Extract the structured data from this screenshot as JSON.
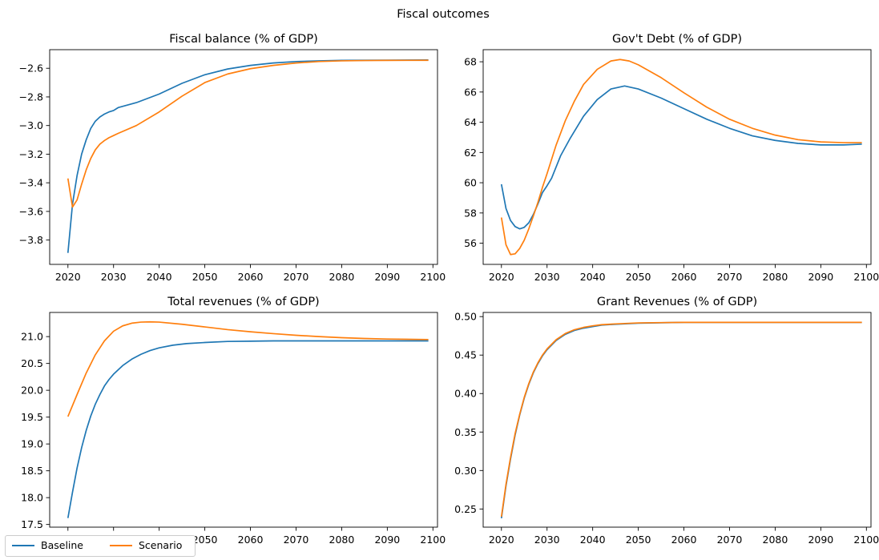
{
  "figure_title": "Fiscal outcomes",
  "colors": {
    "baseline": "#1f77b4",
    "scenario": "#ff7f0e"
  },
  "legend": {
    "location": "lower-left",
    "items": [
      "Baseline",
      "Scenario"
    ]
  },
  "chart_data": [
    {
      "type": "line",
      "title": "Fiscal balance (% of GDP)",
      "xlabel": "",
      "ylabel": "",
      "xlim": [
        2016,
        2101
      ],
      "ylim": [
        -3.97,
        -2.47
      ],
      "xticks": [
        2020,
        2030,
        2040,
        2050,
        2060,
        2070,
        2080,
        2090,
        2100
      ],
      "yticks": [
        -3.8,
        -3.6,
        -3.4,
        -3.2,
        -3.0,
        -2.8,
        -2.6
      ],
      "tick_decimals": 1,
      "series": [
        {
          "name": "Baseline",
          "x": [
            2020,
            2021,
            2022,
            2023,
            2024,
            2025,
            2026,
            2027,
            2028,
            2029,
            2030,
            2031,
            2035,
            2040,
            2045,
            2050,
            2055,
            2060,
            2065,
            2070,
            2075,
            2080,
            2085,
            2090,
            2099
          ],
          "y": [
            -3.89,
            -3.55,
            -3.35,
            -3.2,
            -3.1,
            -3.02,
            -2.97,
            -2.94,
            -2.92,
            -2.905,
            -2.895,
            -2.875,
            -2.84,
            -2.78,
            -2.705,
            -2.645,
            -2.605,
            -2.58,
            -2.563,
            -2.553,
            -2.548,
            -2.545,
            -2.544,
            -2.543,
            -2.542
          ]
        },
        {
          "name": "Scenario",
          "x": [
            2020,
            2021,
            2022,
            2023,
            2024,
            2025,
            2026,
            2027,
            2028,
            2029,
            2030,
            2031,
            2035,
            2040,
            2045,
            2050,
            2055,
            2060,
            2065,
            2070,
            2075,
            2080,
            2085,
            2090,
            2099
          ],
          "y": [
            -3.37,
            -3.57,
            -3.52,
            -3.41,
            -3.31,
            -3.23,
            -3.17,
            -3.13,
            -3.105,
            -3.085,
            -3.07,
            -3.055,
            -3.0,
            -2.905,
            -2.795,
            -2.7,
            -2.64,
            -2.603,
            -2.58,
            -2.563,
            -2.553,
            -2.548,
            -2.546,
            -2.545,
            -2.544
          ]
        }
      ]
    },
    {
      "type": "line",
      "title": "Gov't Debt (% of GDP)",
      "xlabel": "",
      "ylabel": "",
      "xlim": [
        2016,
        2101
      ],
      "ylim": [
        54.6,
        68.8
      ],
      "xticks": [
        2020,
        2030,
        2040,
        2050,
        2060,
        2070,
        2080,
        2090,
        2100
      ],
      "yticks": [
        56,
        58,
        60,
        62,
        64,
        66,
        68
      ],
      "tick_decimals": 0,
      "series": [
        {
          "name": "Baseline",
          "x": [
            2020,
            2021,
            2022,
            2023,
            2024,
            2025,
            2026,
            2027,
            2028,
            2029,
            2030,
            2031,
            2033,
            2035,
            2038,
            2041,
            2044,
            2047,
            2050,
            2055,
            2060,
            2065,
            2070,
            2075,
            2080,
            2085,
            2090,
            2095,
            2099
          ],
          "y": [
            59.9,
            58.3,
            57.5,
            57.1,
            56.95,
            57.05,
            57.35,
            57.9,
            58.6,
            59.35,
            59.8,
            60.3,
            61.8,
            62.9,
            64.4,
            65.5,
            66.2,
            66.4,
            66.2,
            65.6,
            64.9,
            64.2,
            63.6,
            63.1,
            62.8,
            62.6,
            62.5,
            62.5,
            62.55
          ]
        },
        {
          "name": "Scenario",
          "x": [
            2020,
            2021,
            2022,
            2023,
            2024,
            2025,
            2026,
            2027,
            2028,
            2029,
            2030,
            2032,
            2034,
            2036,
            2038,
            2041,
            2044,
            2046,
            2048,
            2050,
            2055,
            2060,
            2065,
            2070,
            2075,
            2080,
            2085,
            2090,
            2095,
            2099
          ],
          "y": [
            57.7,
            55.9,
            55.25,
            55.3,
            55.65,
            56.2,
            56.95,
            57.8,
            58.7,
            59.7,
            60.6,
            62.5,
            64.1,
            65.4,
            66.5,
            67.5,
            68.05,
            68.15,
            68.05,
            67.8,
            66.95,
            65.95,
            65.0,
            64.2,
            63.6,
            63.15,
            62.85,
            62.7,
            62.65,
            62.65
          ]
        }
      ]
    },
    {
      "type": "line",
      "title": "Total revenues (% of GDP)",
      "xlabel": "",
      "ylabel": "",
      "xlim": [
        2016,
        2101
      ],
      "ylim": [
        17.45,
        21.45
      ],
      "xticks": [
        2020,
        2030,
        2040,
        2050,
        2060,
        2070,
        2080,
        2090,
        2100
      ],
      "yticks": [
        17.5,
        18.0,
        18.5,
        19.0,
        19.5,
        20.0,
        20.5,
        21.0
      ],
      "tick_decimals": 1,
      "series": [
        {
          "name": "Baseline",
          "x": [
            2020,
            2021,
            2022,
            2023,
            2024,
            2025,
            2026,
            2027,
            2028,
            2029,
            2030,
            2032,
            2034,
            2036,
            2038,
            2040,
            2043,
            2046,
            2050,
            2055,
            2060,
            2065,
            2070,
            2080,
            2090,
            2099
          ],
          "y": [
            17.62,
            18.1,
            18.55,
            18.93,
            19.25,
            19.52,
            19.74,
            19.92,
            20.08,
            20.2,
            20.3,
            20.46,
            20.58,
            20.67,
            20.74,
            20.79,
            20.84,
            20.87,
            20.89,
            20.91,
            20.915,
            20.92,
            20.92,
            20.92,
            20.92,
            20.92
          ]
        },
        {
          "name": "Scenario",
          "x": [
            2020,
            2022,
            2024,
            2026,
            2028,
            2030,
            2032,
            2034,
            2036,
            2038,
            2040,
            2045,
            2050,
            2055,
            2060,
            2065,
            2070,
            2075,
            2080,
            2085,
            2090,
            2099
          ],
          "y": [
            19.51,
            19.92,
            20.32,
            20.66,
            20.92,
            21.1,
            21.2,
            21.25,
            21.27,
            21.275,
            21.27,
            21.23,
            21.18,
            21.13,
            21.09,
            21.055,
            21.025,
            21.0,
            20.98,
            20.965,
            20.955,
            20.945
          ]
        }
      ]
    },
    {
      "type": "line",
      "title": "Grant Revenues (% of GDP)",
      "xlabel": "",
      "ylabel": "",
      "xlim": [
        2016,
        2101
      ],
      "ylim": [
        0.2264,
        0.5054
      ],
      "xticks": [
        2020,
        2030,
        2040,
        2050,
        2060,
        2070,
        2080,
        2090,
        2100
      ],
      "yticks": [
        0.25,
        0.3,
        0.35,
        0.4,
        0.45,
        0.5
      ],
      "tick_decimals": 2,
      "series": [
        {
          "name": "Baseline",
          "x": [
            2020,
            2021,
            2022,
            2023,
            2024,
            2025,
            2026,
            2027,
            2028,
            2029,
            2030,
            2032,
            2034,
            2036,
            2038,
            2040,
            2042,
            2045,
            2050,
            2055,
            2060,
            2070,
            2080,
            2099
          ],
          "y": [
            0.238,
            0.28,
            0.315,
            0.346,
            0.372,
            0.394,
            0.412,
            0.427,
            0.439,
            0.449,
            0.457,
            0.469,
            0.477,
            0.482,
            0.485,
            0.487,
            0.489,
            0.49,
            0.4915,
            0.492,
            0.4925,
            0.4925,
            0.4925,
            0.4925
          ]
        },
        {
          "name": "Scenario",
          "x": [
            2020,
            2021,
            2022,
            2023,
            2024,
            2025,
            2026,
            2027,
            2028,
            2029,
            2030,
            2032,
            2034,
            2036,
            2038,
            2040,
            2042,
            2045,
            2050,
            2055,
            2060,
            2070,
            2080,
            2099
          ],
          "y": [
            0.24,
            0.282,
            0.317,
            0.348,
            0.373,
            0.395,
            0.413,
            0.428,
            0.44,
            0.45,
            0.458,
            0.47,
            0.478,
            0.483,
            0.486,
            0.488,
            0.4895,
            0.4905,
            0.4918,
            0.4922,
            0.4925,
            0.4925,
            0.4925,
            0.4925
          ]
        }
      ]
    }
  ]
}
